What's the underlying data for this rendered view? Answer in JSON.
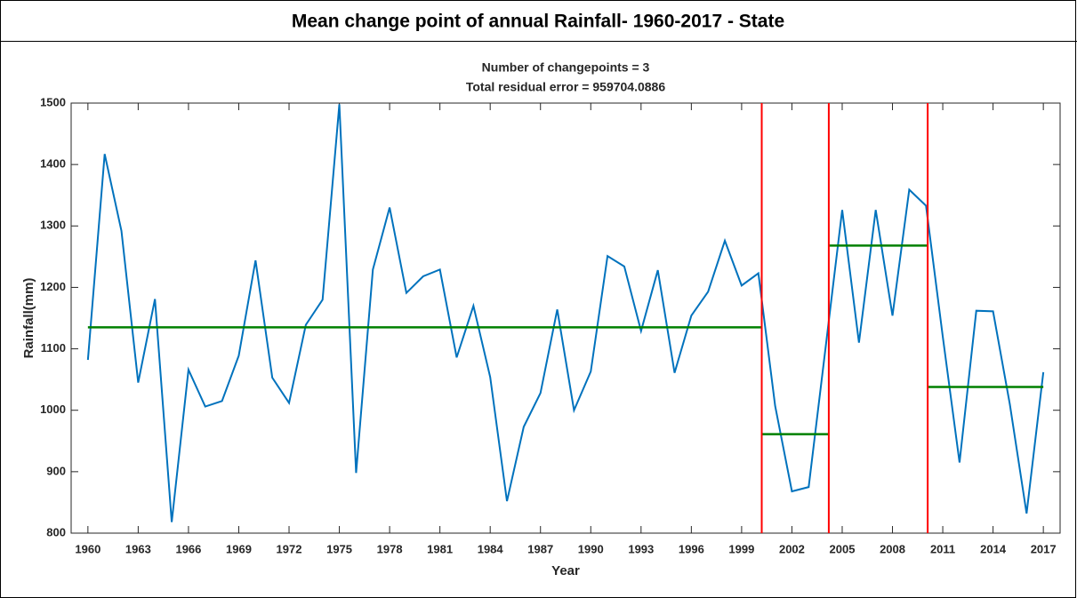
{
  "chart_data": {
    "type": "line",
    "header": "Mean change point of annual Rainfall- 1960-2017 - State",
    "title": "Number of changepoints = 3",
    "subtitle": "Total residual error = 959704.0886",
    "xlabel": "Year",
    "ylabel": "Rainfall(mm)",
    "x": [
      1960,
      1961,
      1962,
      1963,
      1964,
      1965,
      1966,
      1967,
      1968,
      1969,
      1970,
      1971,
      1972,
      1973,
      1974,
      1975,
      1976,
      1977,
      1978,
      1979,
      1980,
      1981,
      1982,
      1983,
      1984,
      1985,
      1986,
      1987,
      1988,
      1989,
      1990,
      1991,
      1992,
      1993,
      1994,
      1995,
      1996,
      1997,
      1998,
      1999,
      2000,
      2001,
      2002,
      2003,
      2004,
      2005,
      2006,
      2007,
      2008,
      2009,
      2010,
      2011,
      2012,
      2013,
      2014,
      2015,
      2016,
      2017
    ],
    "series": [
      {
        "color": "#0072bd",
        "values": [
          1082,
          1417,
          1292,
          1045,
          1181,
          818,
          1066,
          1006,
          1015,
          1089,
          1244,
          1053,
          1012,
          1139,
          1180,
          1498,
          898,
          1229,
          1330,
          1191,
          1218,
          1229,
          1086,
          1170,
          1054,
          852,
          973,
          1028,
          1164,
          1000,
          1063,
          1251,
          1234,
          1129,
          1228,
          1061,
          1154,
          1193,
          1276,
          1203,
          1223,
          1007,
          868,
          875,
          1100,
          1326,
          1110,
          1326,
          1154,
          1359,
          1333,
          1120,
          915,
          1162,
          1161,
          1010,
          832,
          1062
        ]
      }
    ],
    "changepoints": [
      2000.2,
      2004.2,
      2010.1
    ],
    "changepoint_color": "#ff0000",
    "segments": [
      {
        "x": [
          1960,
          2000.2
        ],
        "value": 1135
      },
      {
        "x": [
          2000.2,
          2004.2
        ],
        "value": 961
      },
      {
        "x": [
          2004.2,
          2010.1
        ],
        "value": 1268
      },
      {
        "x": [
          2010.1,
          2017
        ],
        "value": 1038
      }
    ],
    "segment_color": "#008000",
    "xlim": [
      1959,
      2018
    ],
    "ylim": [
      800,
      1500
    ],
    "xticks": [
      1960,
      1963,
      1966,
      1969,
      1972,
      1975,
      1978,
      1981,
      1984,
      1987,
      1990,
      1993,
      1996,
      1999,
      2002,
      2005,
      2008,
      2011,
      2014,
      2017
    ],
    "yticks": [
      800,
      900,
      1000,
      1100,
      1200,
      1300,
      1400,
      1500
    ]
  }
}
